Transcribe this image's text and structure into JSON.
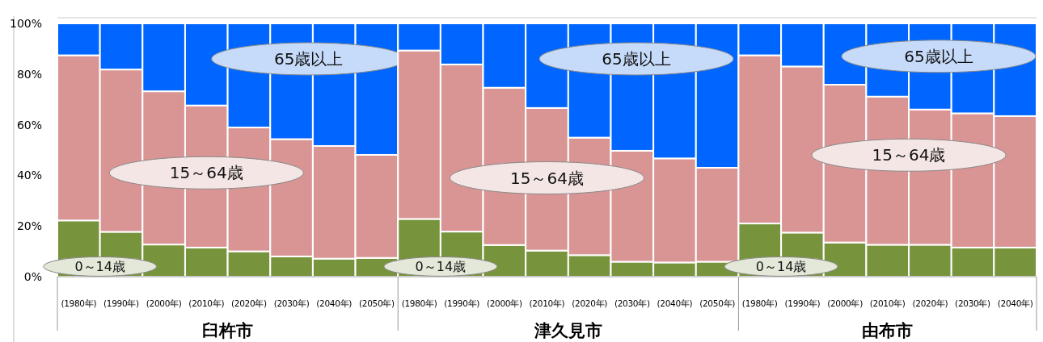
{
  "chart_data": [
    {
      "type": "bar",
      "stacked": true,
      "xlabel": "臼杵市",
      "ylim": [
        0,
        100
      ],
      "yticks": [
        {
          "value": 0,
          "label": "0%"
        },
        {
          "value": 20,
          "label": "20%"
        },
        {
          "value": 40,
          "label": "40%"
        },
        {
          "value": 60,
          "label": "60%"
        },
        {
          "value": 80,
          "label": "80%"
        },
        {
          "value": 100,
          "label": "100%"
        }
      ],
      "categories": [
        "(1980年)",
        "(1990年)",
        "(2000年)",
        "(2010年)",
        "(2020年)",
        "(2030年)",
        "(2040年)",
        "(2050年)"
      ],
      "series": [
        {
          "name": "0～14歳",
          "color": "#77933c",
          "values": [
            22.2,
            17.7,
            12.7,
            11.5,
            10.0,
            8.0,
            7.1,
            7.4
          ]
        },
        {
          "name": "15～64歳",
          "color": "#d99594",
          "values": [
            65.2,
            64.1,
            60.5,
            56.1,
            48.9,
            46.3,
            44.5,
            40.7
          ]
        },
        {
          "name": "65歳以上",
          "color": "#0066ff",
          "values": [
            12.6,
            18.2,
            26.8,
            32.4,
            41.1,
            45.7,
            48.4,
            51.9
          ]
        }
      ]
    },
    {
      "type": "bar",
      "stacked": true,
      "xlabel": "津久見市",
      "tick_labels": "x",
      "ylim": [
        0,
        100
      ],
      "categories": [
        "(1980年)",
        "(1990年)",
        "(2000年)",
        "(2010年)",
        "(2020年)",
        "(2030年)",
        "(2040年)",
        "(2050年)"
      ],
      "series": [
        {
          "name": "0～14歳",
          "color": "#77933c",
          "values": [
            22.8,
            17.8,
            12.5,
            10.3,
            8.5,
            5.9,
            5.6,
            5.9
          ]
        },
        {
          "name": "15～64歳",
          "color": "#d99594",
          "values": [
            66.5,
            66.0,
            62.1,
            56.3,
            46.4,
            43.8,
            41.1,
            37.1
          ]
        },
        {
          "name": "65歳以上",
          "color": "#0066ff",
          "values": [
            10.7,
            16.2,
            25.4,
            33.4,
            45.1,
            50.3,
            53.3,
            57.0
          ]
        }
      ]
    },
    {
      "type": "bar",
      "stacked": true,
      "xlabel": "由布市",
      "tick_labels": "x",
      "ylim": [
        0,
        100
      ],
      "categories": [
        "(1980年)",
        "(1990年)",
        "(2000年)",
        "(2010年)",
        "(2020年)",
        "(2030年)",
        "(2040年)"
      ],
      "series": [
        {
          "name": "0～14歳",
          "color": "#77933c",
          "values": [
            21.0,
            17.4,
            13.5,
            12.6,
            12.6,
            11.5,
            11.5
          ]
        },
        {
          "name": "15～64歳",
          "color": "#d99594",
          "values": [
            66.4,
            65.6,
            62.3,
            58.5,
            53.4,
            53.0,
            51.9
          ]
        },
        {
          "name": "65歳以上",
          "color": "#0066ff",
          "values": [
            12.6,
            17.0,
            24.2,
            28.9,
            34.0,
            35.5,
            36.6
          ]
        }
      ]
    }
  ]
}
